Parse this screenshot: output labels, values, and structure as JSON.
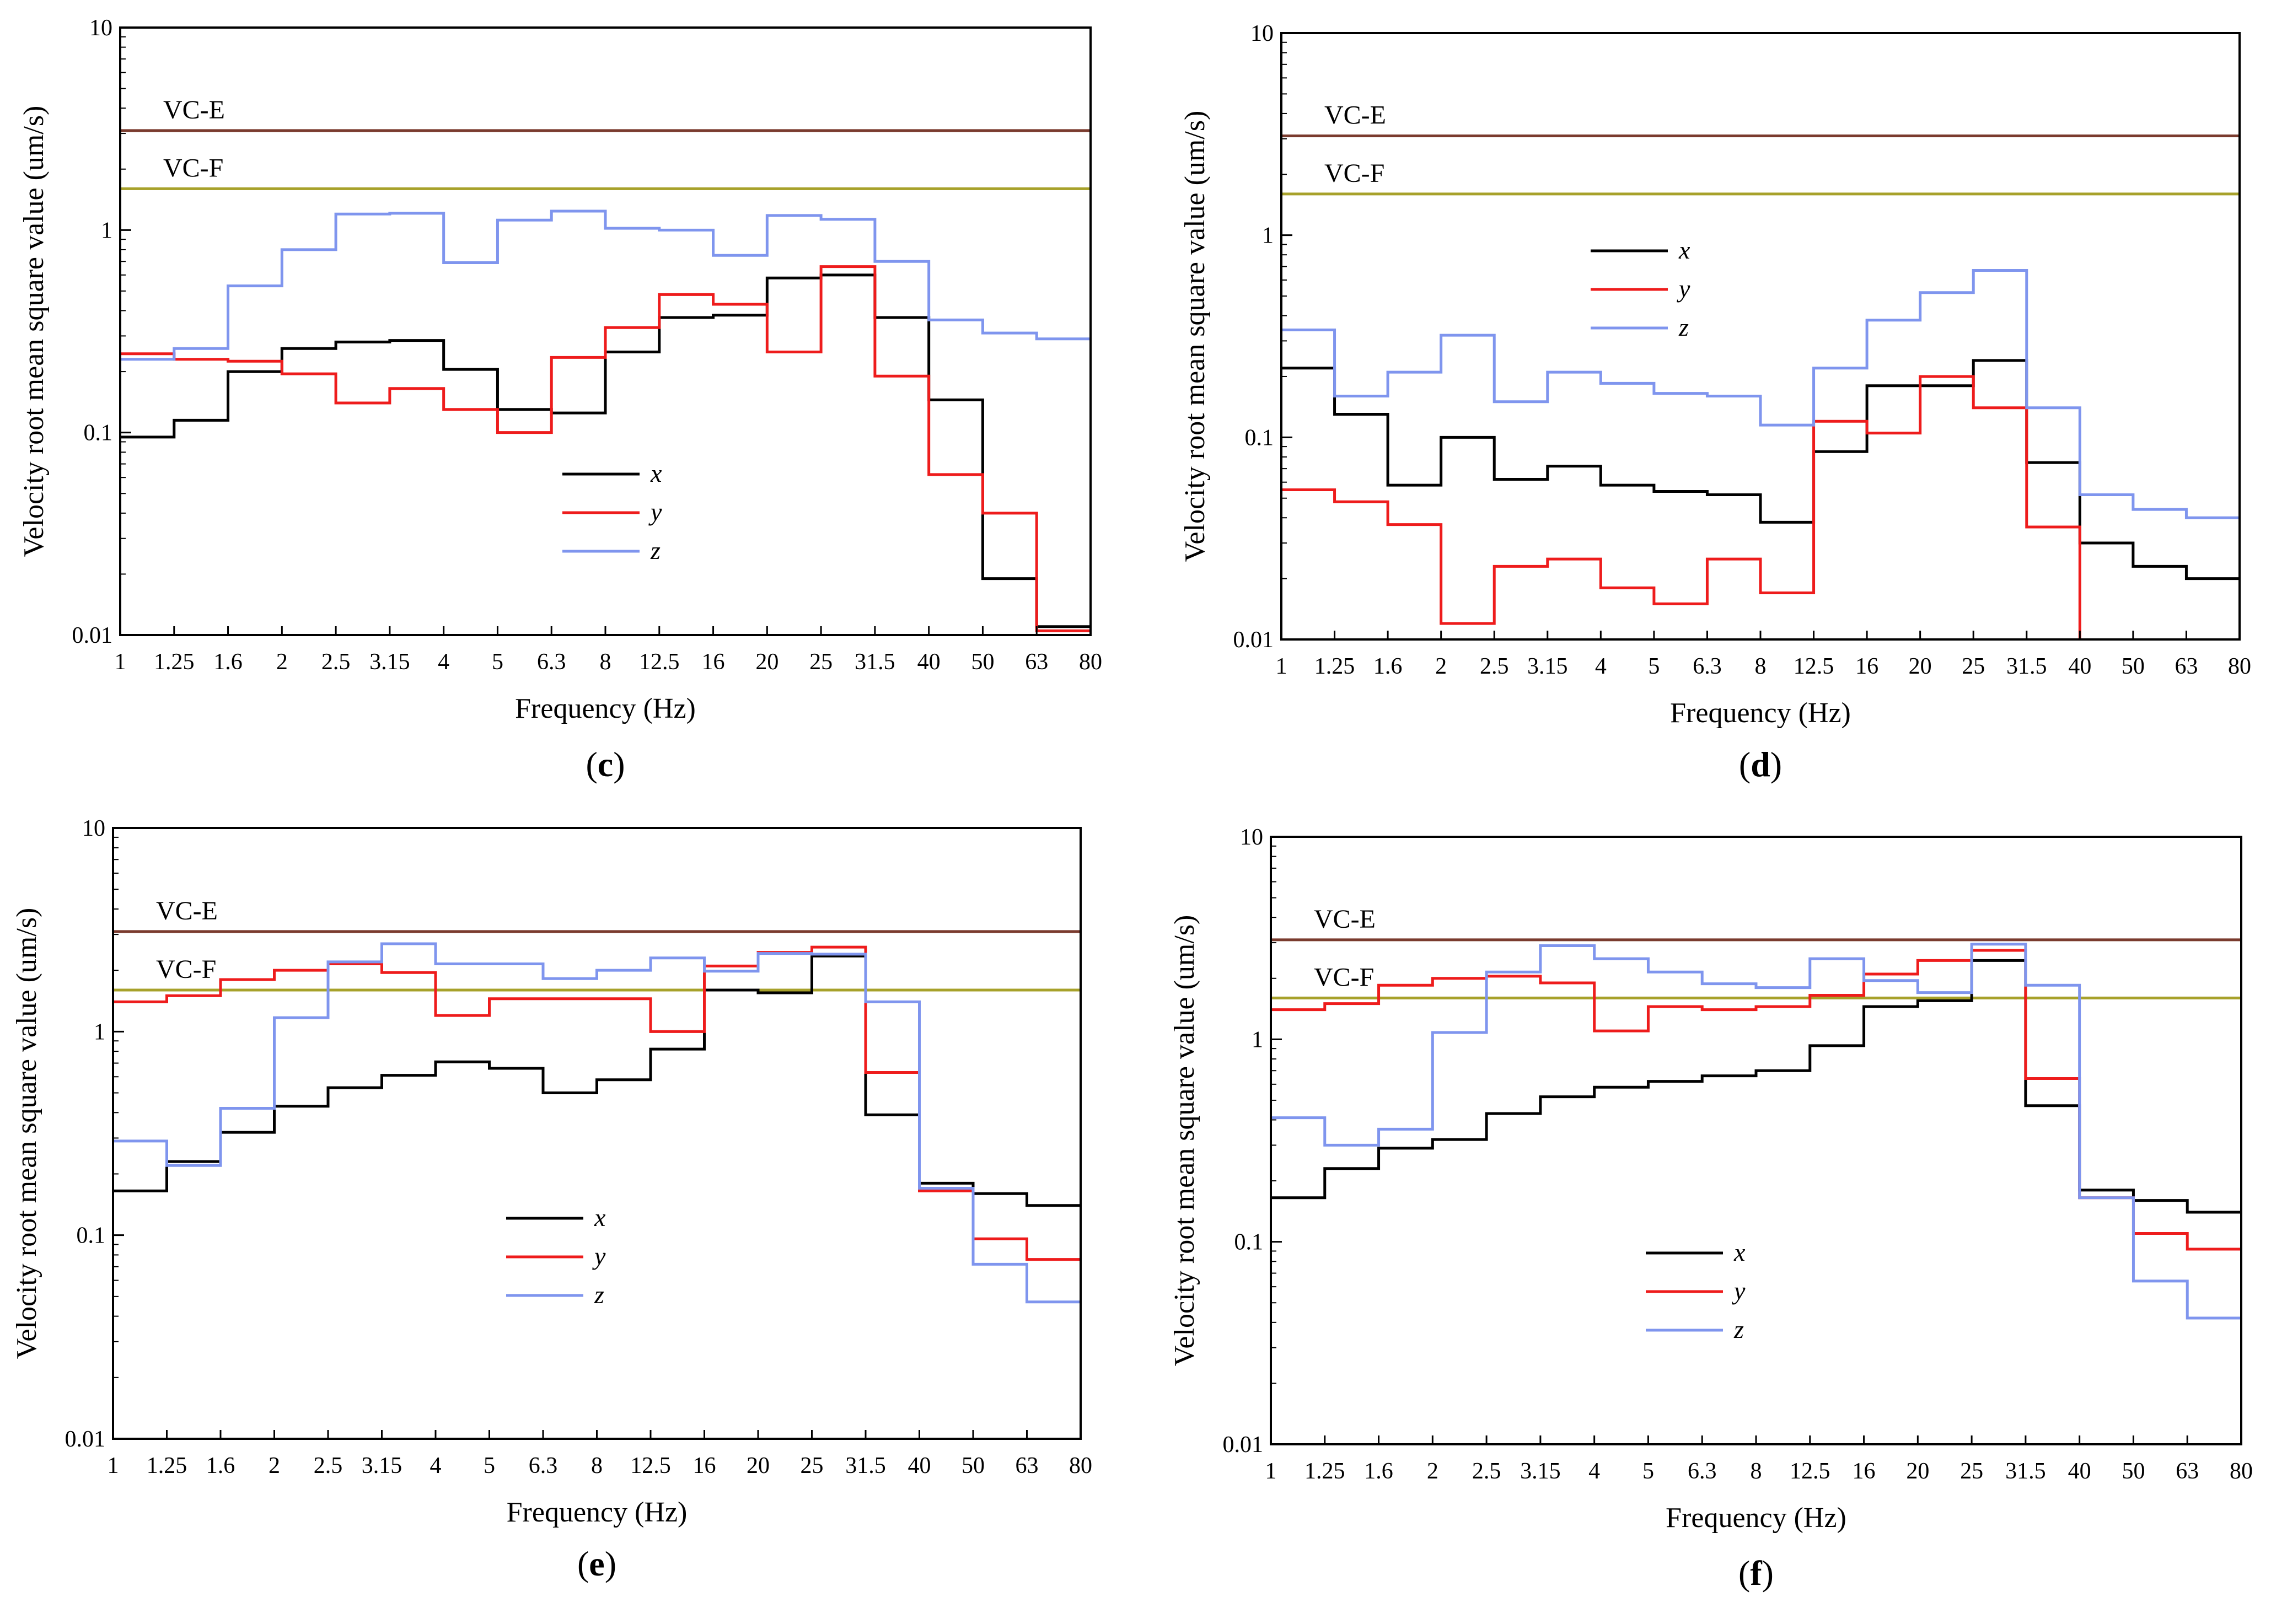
{
  "chart_data": [
    {
      "panel": "(c)",
      "type": "line",
      "xlabel": "Frequency (Hz)",
      "ylabel": "Velocity root mean square value (um/s)",
      "x_scale": "log",
      "y_scale": "log",
      "categories": [
        "1",
        "1.25",
        "1.6",
        "2",
        "2.5",
        "3.15",
        "4",
        "5",
        "6.3",
        "8",
        "12.5",
        "16",
        "20",
        "25",
        "31.5",
        "40",
        "50",
        "63",
        "80"
      ],
      "ylim": [
        0.01,
        10
      ],
      "y_ticks": [
        "0.01",
        "0.1",
        "1",
        "10"
      ],
      "reference_lines": [
        {
          "label": "VC-E",
          "value": 3.1,
          "color": "#7a3b2e"
        },
        {
          "label": "VC-F",
          "value": 1.6,
          "color": "#a7a12a"
        }
      ],
      "legend_position": "center",
      "series": [
        {
          "name": "x",
          "color": "#000000",
          "values": [
            0.095,
            0.115,
            0.2,
            0.26,
            0.28,
            0.285,
            0.205,
            0.13,
            0.125,
            0.25,
            0.37,
            0.38,
            0.58,
            0.6,
            0.37,
            0.145,
            0.019,
            0.011,
            0.0125
          ]
        },
        {
          "name": "y",
          "color": "#ee1c1c",
          "values": [
            0.245,
            0.23,
            0.225,
            0.195,
            0.14,
            0.165,
            0.13,
            0.1,
            0.235,
            0.33,
            0.48,
            0.43,
            0.25,
            0.66,
            0.19,
            0.062,
            0.04,
            0.0105,
            0.018
          ]
        },
        {
          "name": "z",
          "color": "#7f95ee",
          "values": [
            0.23,
            0.26,
            0.53,
            0.8,
            1.2,
            1.21,
            0.69,
            1.12,
            1.24,
            1.02,
            1.0,
            0.75,
            1.18,
            1.13,
            0.7,
            0.36,
            0.31,
            0.29,
            0.27
          ]
        }
      ]
    },
    {
      "panel": "(d)",
      "type": "line",
      "xlabel": "Frequency (Hz)",
      "ylabel": "Velocity root mean square value (um/s)",
      "x_scale": "log",
      "y_scale": "log",
      "categories": [
        "1",
        "1.25",
        "1.6",
        "2",
        "2.5",
        "3.15",
        "4",
        "5",
        "6.3",
        "8",
        "12.5",
        "16",
        "20",
        "25",
        "31.5",
        "40",
        "50",
        "63",
        "80"
      ],
      "ylim": [
        0.01,
        10
      ],
      "y_ticks": [
        "0.01",
        "0.1",
        "1",
        "10"
      ],
      "reference_lines": [
        {
          "label": "VC-E",
          "value": 3.1,
          "color": "#7a3b2e"
        },
        {
          "label": "VC-F",
          "value": 1.6,
          "color": "#a7a12a"
        }
      ],
      "legend_position": "upper center",
      "series": [
        {
          "name": "x",
          "color": "#000000",
          "values": [
            0.22,
            0.13,
            0.058,
            0.1,
            0.062,
            0.072,
            0.058,
            0.054,
            0.052,
            0.038,
            0.085,
            0.18,
            0.18,
            0.24,
            0.075,
            0.03,
            0.023,
            0.02,
            0.018
          ]
        },
        {
          "name": "y",
          "color": "#ee1c1c",
          "values": [
            0.055,
            0.048,
            0.037,
            0.012,
            0.023,
            0.025,
            0.018,
            0.015,
            0.025,
            0.017,
            0.12,
            0.105,
            0.2,
            0.14,
            0.036,
            0.009,
            null,
            null,
            null
          ]
        },
        {
          "name": "z",
          "color": "#7f95ee",
          "values": [
            0.34,
            0.16,
            0.21,
            0.32,
            0.15,
            0.21,
            0.185,
            0.165,
            0.16,
            0.115,
            0.22,
            0.38,
            0.52,
            0.67,
            0.14,
            0.052,
            0.044,
            0.04,
            0.037
          ]
        }
      ]
    },
    {
      "panel": "(e)",
      "type": "line",
      "xlabel": "Frequency (Hz)",
      "ylabel": "Velocity root mean square value (um/s)",
      "x_scale": "log",
      "y_scale": "log",
      "categories": [
        "1",
        "1.25",
        "1.6",
        "2",
        "2.5",
        "3.15",
        "4",
        "5",
        "6.3",
        "8",
        "12.5",
        "16",
        "20",
        "25",
        "31.5",
        "40",
        "50",
        "63",
        "80"
      ],
      "ylim": [
        0.01,
        10
      ],
      "y_ticks": [
        "0.01",
        "0.1",
        "1",
        "10"
      ],
      "reference_lines": [
        {
          "label": "VC-E",
          "value": 3.1,
          "color": "#7a3b2e"
        },
        {
          "label": "VC-F",
          "value": 1.6,
          "color": "#a7a12a"
        }
      ],
      "legend_position": "lower center",
      "series": [
        {
          "name": "x",
          "color": "#000000",
          "values": [
            0.165,
            0.23,
            0.32,
            0.43,
            0.53,
            0.61,
            0.71,
            0.66,
            0.5,
            0.58,
            0.82,
            1.6,
            1.55,
            2.35,
            0.39,
            0.18,
            0.16,
            0.14,
            0.13
          ]
        },
        {
          "name": "y",
          "color": "#ee1c1c",
          "values": [
            1.4,
            1.5,
            1.8,
            2.0,
            2.15,
            1.95,
            1.2,
            1.45,
            1.45,
            1.45,
            1.0,
            2.1,
            2.45,
            2.6,
            0.63,
            0.165,
            0.096,
            0.076,
            0.067
          ]
        },
        {
          "name": "z",
          "color": "#7f95ee",
          "values": [
            0.29,
            0.22,
            0.42,
            1.17,
            2.2,
            2.7,
            2.15,
            2.15,
            1.82,
            2.0,
            2.3,
            1.98,
            2.42,
            2.4,
            1.4,
            0.17,
            0.072,
            0.047,
            0.034
          ]
        }
      ]
    },
    {
      "panel": "(f)",
      "type": "line",
      "xlabel": "Frequency (Hz)",
      "ylabel": "Velocity root mean square value (um/s)",
      "x_scale": "log",
      "y_scale": "log",
      "categories": [
        "1",
        "1.25",
        "1.6",
        "2",
        "2.5",
        "3.15",
        "4",
        "5",
        "6.3",
        "8",
        "12.5",
        "16",
        "20",
        "25",
        "31.5",
        "40",
        "50",
        "63",
        "80"
      ],
      "ylim": [
        0.01,
        10
      ],
      "y_ticks": [
        "0.01",
        "0.1",
        "1",
        "10"
      ],
      "reference_lines": [
        {
          "label": "VC-E",
          "value": 3.1,
          "color": "#7a3b2e"
        },
        {
          "label": "VC-F",
          "value": 1.6,
          "color": "#a7a12a"
        }
      ],
      "legend_position": "lower center",
      "series": [
        {
          "name": "x",
          "color": "#000000",
          "values": [
            0.165,
            0.23,
            0.29,
            0.32,
            0.43,
            0.52,
            0.58,
            0.62,
            0.66,
            0.7,
            0.93,
            1.45,
            1.55,
            2.45,
            0.47,
            0.18,
            0.16,
            0.14,
            0.13
          ]
        },
        {
          "name": "y",
          "color": "#ee1c1c",
          "values": [
            1.4,
            1.5,
            1.85,
            2.0,
            2.05,
            1.9,
            1.1,
            1.45,
            1.4,
            1.45,
            1.65,
            2.1,
            2.45,
            2.75,
            0.64,
            0.165,
            0.11,
            0.092,
            0.084
          ]
        },
        {
          "name": "z",
          "color": "#7f95ee",
          "values": [
            0.41,
            0.3,
            0.36,
            1.08,
            2.15,
            2.9,
            2.5,
            2.15,
            1.88,
            1.8,
            2.5,
            1.95,
            1.7,
            2.95,
            1.85,
            0.165,
            0.064,
            0.042,
            0.03
          ]
        }
      ]
    }
  ]
}
